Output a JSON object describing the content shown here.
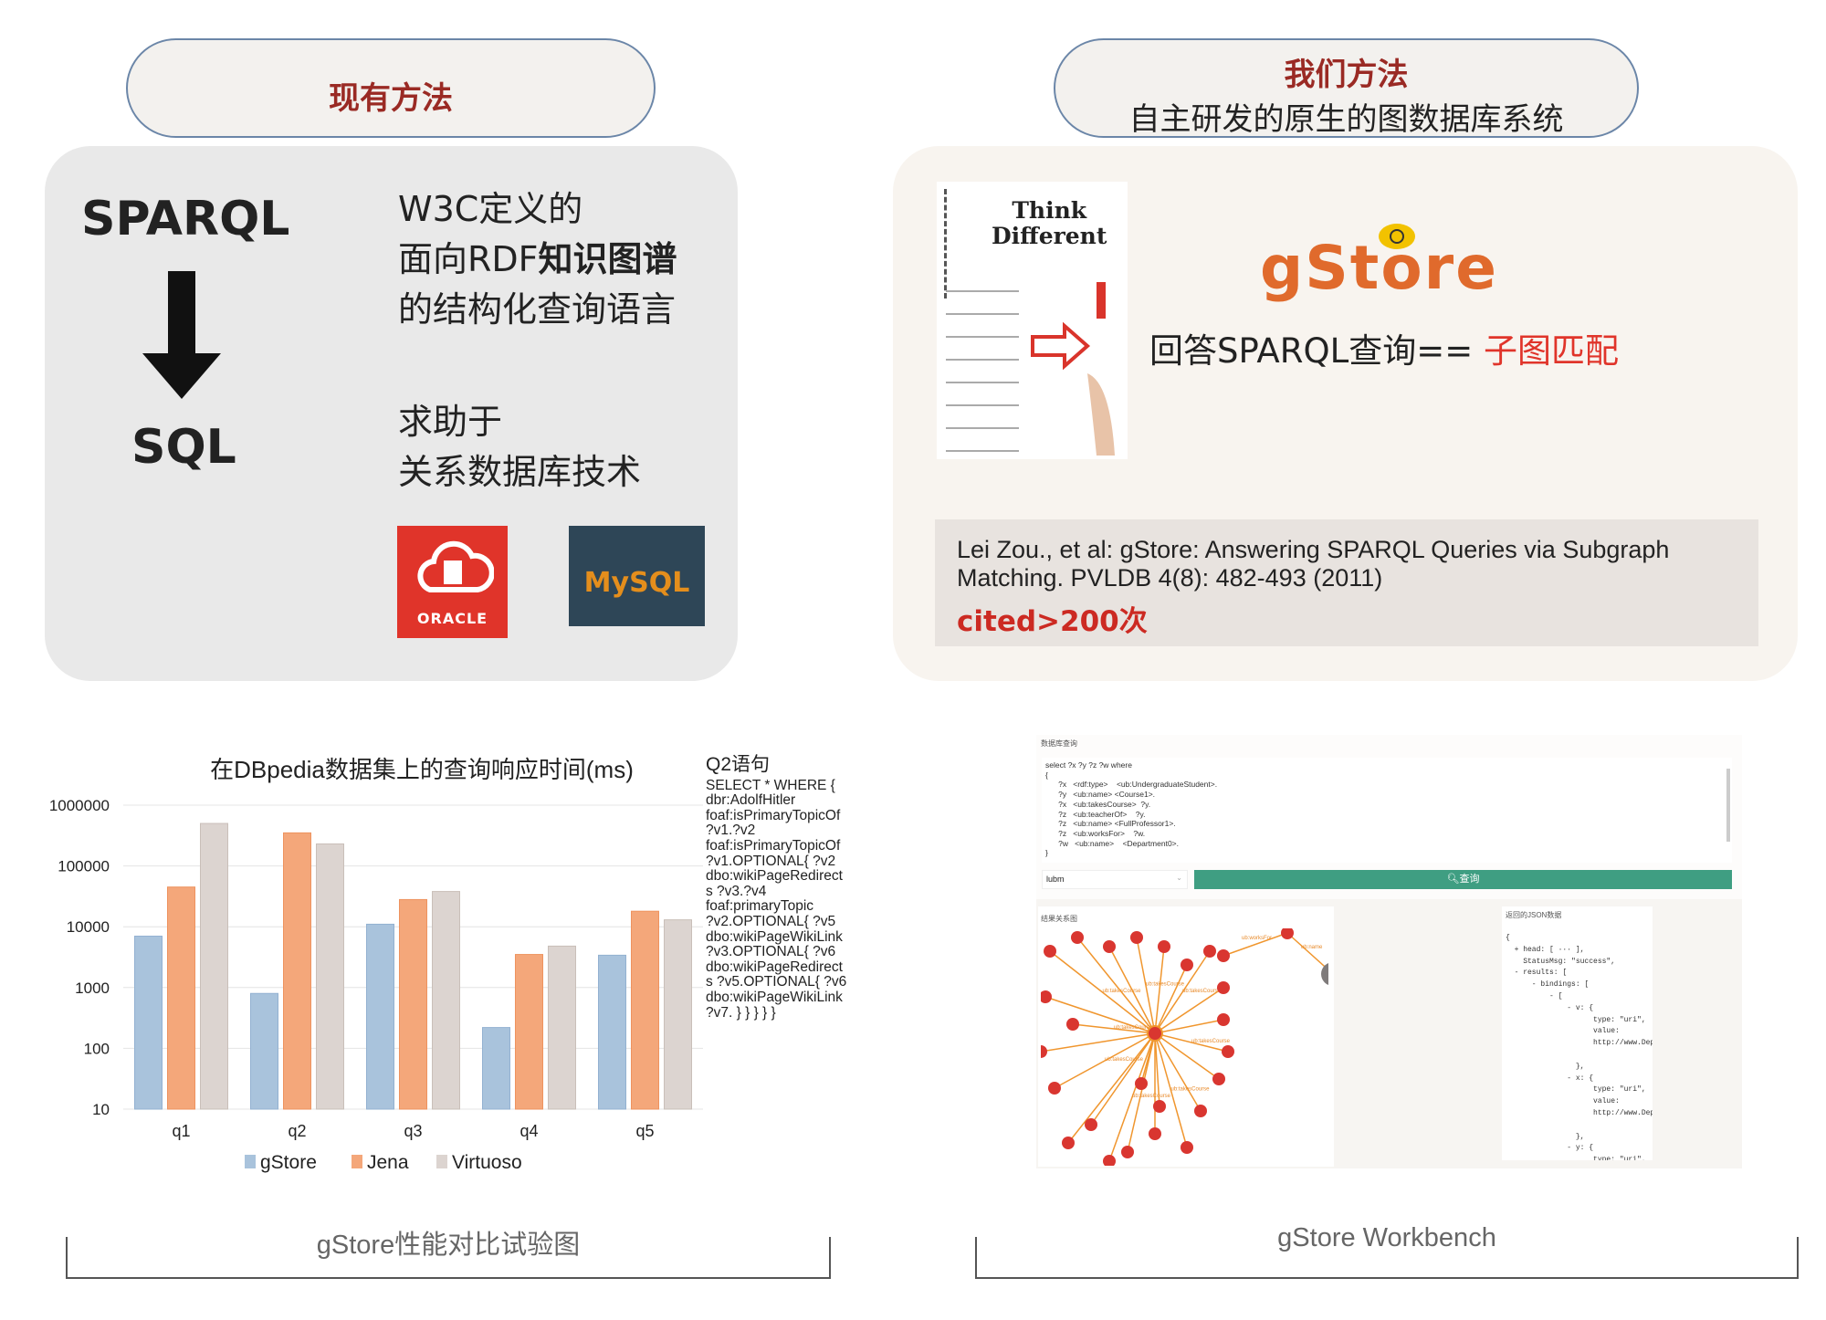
{
  "left": {
    "pill_title": "现有方法",
    "sparql": "SPARQL",
    "sql": "SQL",
    "desc_lines": [
      "W3C定义的",
      "面向RDF",
      "知识图谱",
      "的结构化查询语言"
    ],
    "help_lines": [
      "求助于",
      "关系数据库技术"
    ],
    "logos": {
      "oracle": "ORACLE",
      "mysql": "MySQL"
    }
  },
  "right": {
    "pill_title": "我们方法",
    "pill_subtitle": "自主研发的原生的图数据库系统",
    "image_text": [
      "Think",
      "Different"
    ],
    "logo": "gStore",
    "claim_prefix": "回答SPARQL查询== ",
    "claim_highlight": "子图匹配",
    "citation": "Lei Zou., et al: gStore: Answering SPARQL Queries via Subgraph Matching. PVLDB 4(8): 482-493 (2011)",
    "cited": "cited>200次"
  },
  "chart_data": {
    "type": "bar",
    "title": "在DBpedia数据集上的查询响应时间(ms)",
    "xlabel": "",
    "ylabel": "",
    "yscale": "log",
    "ylim": [
      10,
      1000000
    ],
    "yticks": [
      "1000000",
      "100000",
      "10000",
      "1000",
      "100",
      "10"
    ],
    "categories": [
      "q1",
      "q2",
      "q3",
      "q4",
      "q5"
    ],
    "grid": true,
    "legend": "bottom",
    "series": [
      {
        "name": "gStore",
        "color": "#a9c3dc",
        "values": [
          7000,
          800,
          11000,
          220,
          3400
        ]
      },
      {
        "name": "Jena",
        "color": "#f4a77a",
        "values": [
          45000,
          350000,
          28000,
          3500,
          18000
        ]
      },
      {
        "name": "Virtuoso",
        "color": "#dcd4d0",
        "values": [
          500000,
          230000,
          38000,
          4800,
          13000
        ]
      }
    ]
  },
  "q2": {
    "title": "Q2语句",
    "lines": [
      "SELECT * WHERE {",
      "dbr:AdolfHitler",
      "foaf:isPrimaryTopicOf",
      "?v1.?v2",
      "foaf:isPrimaryTopicOf",
      "?v1.OPTIONAL{ ?v2",
      "dbo:wikiPageRedirect",
      "s ?v3.?v4",
      "foaf:primaryTopic",
      "?v2.OPTIONAL{ ?v5",
      "dbo:wikiPageWikiLink",
      "?v3.OPTIONAL{ ?v6",
      "dbo:wikiPageRedirect",
      "s ?v5.OPTIONAL{ ?v6",
      "dbo:wikiPageWikiLink",
      "?v7. } } } } }"
    ]
  },
  "workbench": {
    "query_label": "数据库查询",
    "query": "select ?x ?y ?z ?w where\n{\n      ?x   <rdf:type>    <ub:UndergraduateStudent>.\n      ?y   <ub:name> <Course1>.\n      ?x   <ub:takesCourse>  ?y.\n      ?z   <ub:teacherOf>    ?y.\n      ?z   <ub:name> <FullProfessor1>.\n      ?z   <ub:worksFor>    ?w.\n      ?w   <ub:name>    <Department0>.\n}",
    "db_select": "lubm",
    "query_button": "查询",
    "graph_label": "结果关系图",
    "json_label": "返回的JSON数据",
    "edge_labels": [
      "ub:takesCourse",
      "ub:teacherOf",
      "ub:worksFor",
      "ub:name"
    ],
    "json": "{\n  + head: [ ··· ],\n    StatusMsg: \"success\",\n  - results: [\n      - bindings: [\n          - [\n              - v: {\n                    type: \"uri\",\n                    value:\n                    http://www.Department0.University0.edu\n\n                },\n              - x: {\n                    type: \"uri\",\n                    value:\n                    http://www.Department0.University0.edu/Un\n\n                },\n              - y: {\n                    type: \"uri\",",
    "accent": "#3f9e82"
  },
  "captions": {
    "left": "gStore性能对比试验图",
    "right": "gStore Workbench"
  }
}
